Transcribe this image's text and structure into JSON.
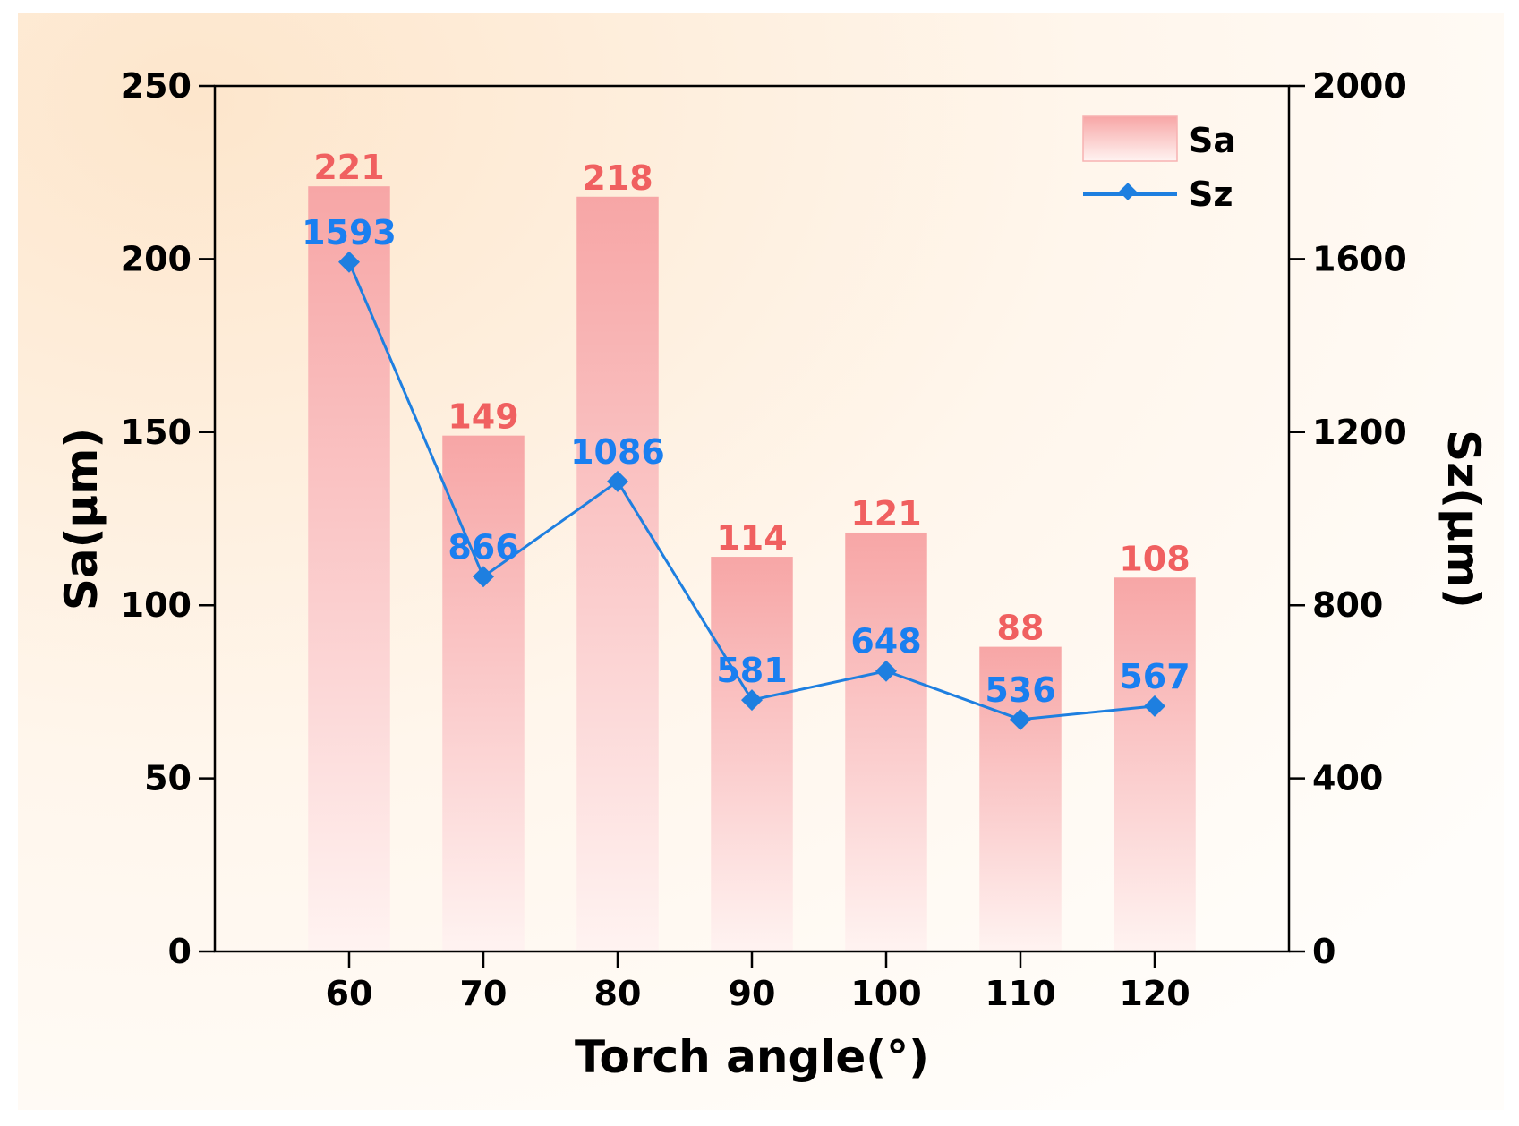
{
  "colors": {
    "bar": "#f7a9a9",
    "bar_label": "#f06060",
    "line": "#1e7fe0",
    "line_label": "#1a7ff0",
    "background_warm": "#fdebd6"
  },
  "chart_data": {
    "type": "bar",
    "title": "",
    "xlabel": "Torch angle(°)",
    "ylabel": "Sa(μm)",
    "y2label": "Sz(μm)",
    "categories": [
      "60",
      "70",
      "80",
      "90",
      "100",
      "110",
      "120"
    ],
    "x_values": [
      60,
      70,
      80,
      90,
      100,
      110,
      120
    ],
    "xlim": [
      50,
      130
    ],
    "ylim": [
      0,
      250
    ],
    "y2lim": [
      0,
      2000
    ],
    "yticks": [
      0,
      50,
      100,
      150,
      200,
      250
    ],
    "y2ticks": [
      0,
      400,
      800,
      1200,
      1600,
      2000
    ],
    "grid": false,
    "legend_position": "top-right",
    "series": [
      {
        "name": "Sa",
        "type": "bar",
        "axis": "left",
        "values": [
          221,
          149,
          218,
          114,
          121,
          88,
          108
        ]
      },
      {
        "name": "Sz",
        "type": "line",
        "axis": "right",
        "marker": "diamond",
        "values": [
          1593,
          866,
          1086,
          581,
          648,
          536,
          567
        ]
      }
    ]
  }
}
